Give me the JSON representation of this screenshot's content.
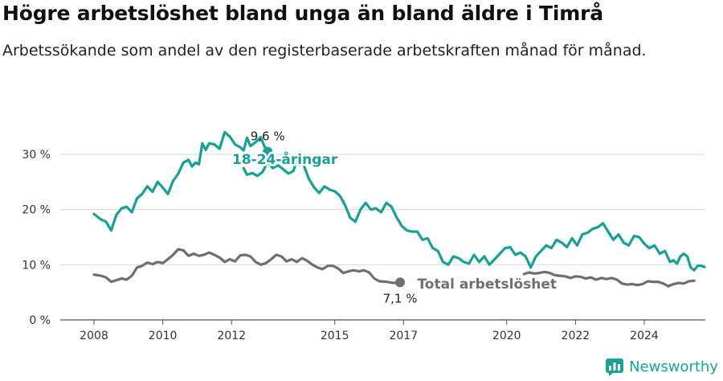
{
  "title": "Högre arbetslöshet bland unga än bland äldre i Timrå",
  "subtitle": "Arbetssökande som andel av den registerbaserade arbetskraften månad för månad.",
  "brand": {
    "name": "Newsworthy",
    "color": "#1aa394"
  },
  "chart_data": {
    "type": "line",
    "ylim": [
      0,
      35
    ],
    "xlim": [
      2007.8,
      2025.6
    ],
    "yticks": [
      0,
      10,
      20,
      30
    ],
    "ytick_labels": [
      "0 %",
      "10 %",
      "20 %",
      "30 %"
    ],
    "xticks": [
      2008,
      2010,
      2012,
      2015,
      2017,
      2020,
      2022,
      2024
    ],
    "xtick_labels": [
      "2008",
      "2010",
      "2012",
      "2015",
      "2017",
      "2020",
      "2022",
      "2024"
    ],
    "grid": true,
    "series": [
      {
        "name": "18-24-åringar",
        "color": "#17a093",
        "end_label": "9,6 %",
        "points": [
          [
            2008.0,
            19.2
          ],
          [
            2008.2,
            18.2
          ],
          [
            2008.35,
            17.8
          ],
          [
            2008.5,
            16.2
          ],
          [
            2008.65,
            19.0
          ],
          [
            2008.8,
            20.2
          ],
          [
            2008.95,
            20.5
          ],
          [
            2009.1,
            19.5
          ],
          [
            2009.25,
            22.0
          ],
          [
            2009.4,
            22.8
          ],
          [
            2009.55,
            24.2
          ],
          [
            2009.7,
            23.2
          ],
          [
            2009.85,
            25.0
          ],
          [
            2010.0,
            24.0
          ],
          [
            2010.15,
            22.8
          ],
          [
            2010.3,
            25.2
          ],
          [
            2010.45,
            26.5
          ],
          [
            2010.6,
            28.5
          ],
          [
            2010.75,
            29.0
          ],
          [
            2010.85,
            27.8
          ],
          [
            2010.95,
            28.5
          ],
          [
            2011.05,
            28.2
          ],
          [
            2011.15,
            32.0
          ],
          [
            2011.25,
            30.8
          ],
          [
            2011.35,
            32.0
          ],
          [
            2011.5,
            31.8
          ],
          [
            2011.65,
            31.0
          ],
          [
            2011.8,
            34.0
          ],
          [
            2011.95,
            33.2
          ],
          [
            2012.1,
            31.8
          ],
          [
            2012.25,
            31.3
          ],
          [
            2012.35,
            30.7
          ],
          [
            2012.45,
            33.0
          ],
          [
            2012.55,
            31.5
          ],
          [
            2012.7,
            32.2
          ],
          [
            2012.85,
            33.1
          ],
          [
            2012.95,
            31.5
          ],
          [
            2013.05,
            30.5
          ]
        ]
      },
      {
        "name": "18-24-åringar",
        "color": "#17a093",
        "points": [
          [
            2012.35,
            27.5
          ],
          [
            2012.45,
            26.3
          ],
          [
            2012.6,
            26.6
          ],
          [
            2012.75,
            26.1
          ],
          [
            2012.9,
            26.8
          ],
          [
            2013.05,
            28.6
          ],
          [
            2013.2,
            27.5
          ],
          [
            2013.35,
            28.0
          ],
          [
            2013.5,
            27.3
          ],
          [
            2013.65,
            26.5
          ],
          [
            2013.8,
            27.0
          ],
          [
            2013.95,
            30.0
          ],
          [
            2014.1,
            28.0
          ],
          [
            2014.25,
            25.5
          ],
          [
            2014.4,
            24.0
          ],
          [
            2014.55,
            23.0
          ],
          [
            2014.7,
            24.2
          ],
          [
            2014.85,
            23.6
          ],
          [
            2015.0,
            23.3
          ],
          [
            2015.15,
            22.5
          ],
          [
            2015.3,
            20.8
          ],
          [
            2015.45,
            18.5
          ],
          [
            2015.6,
            17.8
          ],
          [
            2015.75,
            20.0
          ],
          [
            2015.9,
            21.2
          ],
          [
            2016.05,
            20.0
          ],
          [
            2016.2,
            20.2
          ],
          [
            2016.35,
            19.5
          ],
          [
            2016.5,
            21.2
          ],
          [
            2016.65,
            20.5
          ],
          [
            2016.8,
            18.6
          ],
          [
            2016.95,
            17.0
          ],
          [
            2017.1,
            16.2
          ],
          [
            2017.25,
            16.0
          ],
          [
            2017.4,
            16.0
          ],
          [
            2017.55,
            14.5
          ],
          [
            2017.7,
            14.8
          ],
          [
            2017.85,
            13.0
          ],
          [
            2018.0,
            12.5
          ],
          [
            2018.15,
            10.5
          ],
          [
            2018.3,
            10.0
          ],
          [
            2018.45,
            11.5
          ],
          [
            2018.6,
            11.2
          ],
          [
            2018.75,
            10.5
          ],
          [
            2018.9,
            10.2
          ],
          [
            2019.05,
            11.8
          ],
          [
            2019.2,
            10.5
          ],
          [
            2019.35,
            11.5
          ],
          [
            2019.5,
            10.0
          ],
          [
            2019.65,
            11.0
          ],
          [
            2019.8,
            12.0
          ],
          [
            2019.95,
            13.0
          ],
          [
            2020.1,
            13.2
          ],
          [
            2020.25,
            11.8
          ],
          [
            2020.4,
            12.2
          ],
          [
            2020.55,
            11.5
          ],
          [
            2020.7,
            9.5
          ],
          [
            2020.85,
            11.5
          ],
          [
            2021.0,
            12.5
          ],
          [
            2021.15,
            13.5
          ],
          [
            2021.3,
            13.0
          ],
          [
            2021.45,
            14.5
          ],
          [
            2021.6,
            14.0
          ],
          [
            2021.75,
            13.2
          ],
          [
            2021.9,
            14.8
          ],
          [
            2022.05,
            13.5
          ],
          [
            2022.2,
            15.5
          ],
          [
            2022.35,
            15.8
          ],
          [
            2022.5,
            16.5
          ],
          [
            2022.65,
            16.8
          ],
          [
            2022.8,
            17.5
          ],
          [
            2022.95,
            16.0
          ],
          [
            2023.1,
            14.5
          ],
          [
            2023.25,
            15.5
          ],
          [
            2023.4,
            14.0
          ],
          [
            2023.55,
            13.5
          ],
          [
            2023.7,
            15.2
          ],
          [
            2023.85,
            15.0
          ],
          [
            2024.0,
            13.8
          ],
          [
            2024.15,
            13.0
          ],
          [
            2024.3,
            13.5
          ],
          [
            2024.45,
            12.0
          ],
          [
            2024.6,
            12.5
          ],
          [
            2024.75,
            10.5
          ],
          [
            2024.85,
            10.8
          ],
          [
            2024.95,
            10.2
          ],
          [
            2025.05,
            11.5
          ],
          [
            2025.15,
            12.0
          ],
          [
            2025.25,
            11.5
          ],
          [
            2025.35,
            9.5
          ],
          [
            2025.45,
            9.0
          ],
          [
            2025.55,
            9.8
          ],
          [
            2025.65,
            9.8
          ],
          [
            2025.75,
            9.6
          ]
        ]
      },
      {
        "name": "Total arbetslöshet",
        "color": "#6f6f73",
        "end_label": "7,1 %",
        "points": [
          [
            2008.0,
            8.2
          ],
          [
            2008.2,
            8.0
          ],
          [
            2008.35,
            7.7
          ],
          [
            2008.5,
            6.9
          ],
          [
            2008.65,
            7.2
          ],
          [
            2008.8,
            7.5
          ],
          [
            2008.95,
            7.3
          ],
          [
            2009.1,
            8.0
          ],
          [
            2009.25,
            9.5
          ],
          [
            2009.4,
            9.8
          ],
          [
            2009.55,
            10.4
          ],
          [
            2009.7,
            10.1
          ],
          [
            2009.85,
            10.5
          ],
          [
            2010.0,
            10.3
          ],
          [
            2010.15,
            11.0
          ],
          [
            2010.3,
            11.8
          ],
          [
            2010.45,
            12.8
          ],
          [
            2010.6,
            12.6
          ],
          [
            2010.75,
            11.6
          ],
          [
            2010.9,
            12.0
          ],
          [
            2011.05,
            11.6
          ],
          [
            2011.2,
            11.8
          ],
          [
            2011.35,
            12.2
          ],
          [
            2011.5,
            11.8
          ],
          [
            2011.65,
            11.3
          ],
          [
            2011.8,
            10.5
          ],
          [
            2011.95,
            11.0
          ],
          [
            2012.1,
            10.6
          ],
          [
            2012.25,
            11.7
          ],
          [
            2012.4,
            11.8
          ],
          [
            2012.55,
            11.5
          ],
          [
            2012.7,
            10.5
          ],
          [
            2012.85,
            10.0
          ],
          [
            2013.0,
            10.3
          ],
          [
            2013.15,
            11.0
          ],
          [
            2013.3,
            11.8
          ],
          [
            2013.45,
            11.5
          ],
          [
            2013.6,
            10.6
          ],
          [
            2013.75,
            11.0
          ],
          [
            2013.9,
            10.5
          ],
          [
            2014.05,
            11.2
          ],
          [
            2014.2,
            10.7
          ],
          [
            2014.35,
            10.0
          ],
          [
            2014.5,
            9.5
          ],
          [
            2014.65,
            9.2
          ],
          [
            2014.8,
            9.8
          ],
          [
            2014.95,
            9.8
          ],
          [
            2015.1,
            9.3
          ],
          [
            2015.25,
            8.5
          ],
          [
            2015.4,
            8.8
          ],
          [
            2015.55,
            9.0
          ],
          [
            2015.7,
            8.8
          ],
          [
            2015.85,
            9.0
          ],
          [
            2016.0,
            8.6
          ],
          [
            2016.15,
            7.5
          ],
          [
            2016.3,
            7.0
          ],
          [
            2016.5,
            6.9
          ],
          [
            2016.7,
            6.7
          ],
          [
            2016.9,
            6.8
          ]
        ]
      },
      {
        "name": "Total arbetslöshet",
        "color": "#6f6f73",
        "points": [
          [
            2020.5,
            8.3
          ],
          [
            2020.65,
            8.6
          ],
          [
            2020.8,
            8.4
          ],
          [
            2020.95,
            8.5
          ],
          [
            2021.1,
            8.7
          ],
          [
            2021.25,
            8.5
          ],
          [
            2021.4,
            8.1
          ],
          [
            2021.55,
            8.0
          ],
          [
            2021.7,
            7.9
          ],
          [
            2021.85,
            7.6
          ],
          [
            2022.0,
            7.9
          ],
          [
            2022.15,
            7.8
          ],
          [
            2022.3,
            7.5
          ],
          [
            2022.45,
            7.7
          ],
          [
            2022.6,
            7.3
          ],
          [
            2022.75,
            7.6
          ],
          [
            2022.9,
            7.4
          ],
          [
            2023.05,
            7.6
          ],
          [
            2023.2,
            7.3
          ],
          [
            2023.35,
            6.6
          ],
          [
            2023.5,
            6.4
          ],
          [
            2023.65,
            6.5
          ],
          [
            2023.8,
            6.3
          ],
          [
            2023.95,
            6.5
          ],
          [
            2024.1,
            7.0
          ],
          [
            2024.25,
            6.9
          ],
          [
            2024.4,
            6.9
          ],
          [
            2024.55,
            6.6
          ],
          [
            2024.7,
            6.1
          ],
          [
            2024.85,
            6.5
          ],
          [
            2025.0,
            6.7
          ],
          [
            2025.15,
            6.6
          ],
          [
            2025.3,
            7.0
          ],
          [
            2025.45,
            7.1
          ]
        ]
      }
    ]
  }
}
